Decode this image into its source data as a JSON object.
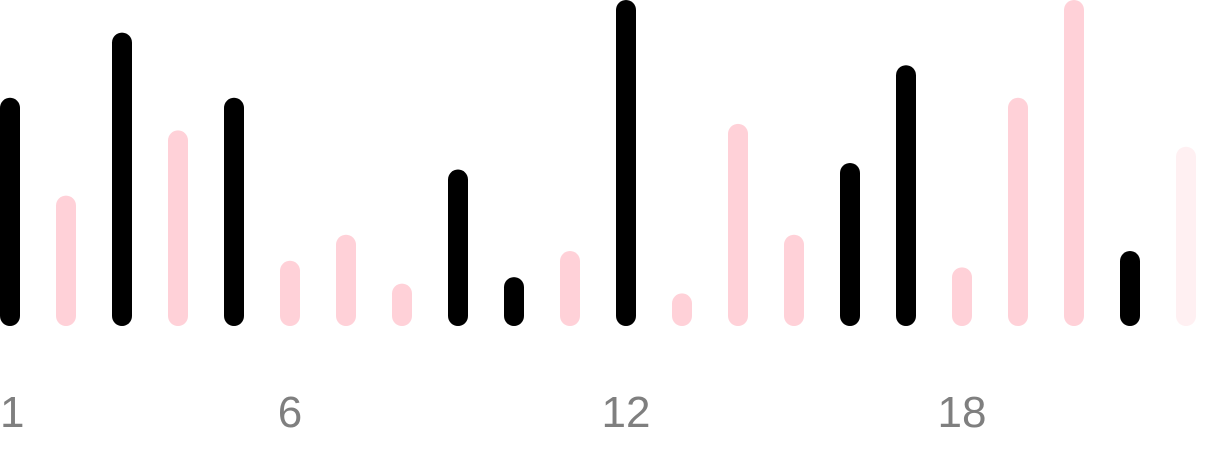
{
  "chart_data": {
    "type": "bar",
    "title": "",
    "xlabel": "",
    "ylabel": "",
    "x": [
      1,
      2,
      3,
      4,
      5,
      6,
      7,
      8,
      9,
      10,
      11,
      12,
      13,
      14,
      15,
      16,
      17,
      18,
      19,
      20,
      21,
      22
    ],
    "values": [
      70,
      40,
      90,
      60,
      70,
      20,
      28,
      13,
      48,
      15,
      23,
      100,
      10,
      62,
      28,
      50,
      80,
      18,
      70,
      100,
      23,
      55
    ],
    "bar_status": [
      "dark",
      "light",
      "dark",
      "light",
      "dark",
      "light",
      "light",
      "light",
      "dark",
      "dark",
      "light",
      "dark",
      "light",
      "light",
      "light",
      "dark",
      "dark",
      "light",
      "light",
      "light",
      "dark",
      "faded"
    ],
    "colors": {
      "dark": "#000000",
      "light": "#ffd1d8",
      "faded": "#fff0f2",
      "tick_label": "#7f7f7f"
    },
    "x_tick_labels": [
      "1",
      "6",
      "12",
      "18"
    ],
    "x_tick_positions": [
      1,
      6,
      12,
      18
    ],
    "ylim": [
      0,
      100
    ],
    "grid": false,
    "legend": "none"
  }
}
